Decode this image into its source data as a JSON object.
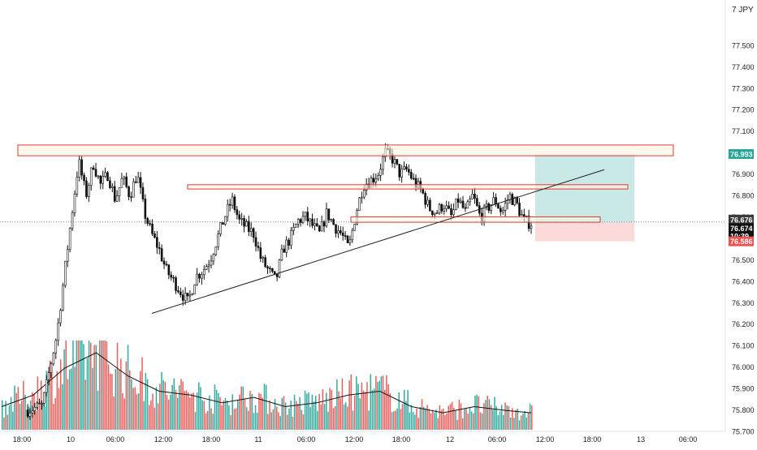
{
  "symbol_label": "7 JPY",
  "colors": {
    "up": "#26a69a",
    "down": "#ef5350",
    "candle": "#111111",
    "profit_zone": "#b2dfdb",
    "stop_zone": "#fcd6d6",
    "target_badge": "#26a69a",
    "stop_badge": "#ef5350",
    "price_badge": "#111111",
    "zone_border": "#e53935",
    "zone_fill": "#fff3e0",
    "trendline": "#222222",
    "volume_ma": "#111111",
    "axis_text": "#222222"
  },
  "chart_data": {
    "type": "candlestick",
    "title": "",
    "xlabel": "",
    "ylabel": "",
    "ylim": [
      75.65,
      77.62
    ],
    "y_ticks": [
      75.7,
      75.8,
      75.9,
      76.0,
      76.1,
      76.2,
      76.3,
      76.4,
      76.5,
      76.6,
      76.7,
      76.8,
      76.9,
      77.0,
      77.1,
      77.2,
      77.3,
      77.4,
      77.5
    ],
    "y_tick_labels": [
      "75.700",
      "75.800",
      "75.900",
      "76.000",
      "76.100",
      "76.200",
      "76.300",
      "76.400",
      "76.500",
      "76.600",
      "76.700",
      "76.800",
      "76.900",
      "77.000",
      "77.100",
      "77.200",
      "77.300",
      "77.400",
      "77.500"
    ],
    "x_ticks": [
      "18:00",
      "10",
      "06:00",
      "12:00",
      "18:00",
      "11",
      "06:00",
      "12:00",
      "18:00",
      "12",
      "06:00",
      "12:00",
      "18:00",
      "13",
      "06:00"
    ],
    "price_path": [
      [
        0,
        75.8
      ],
      [
        2,
        75.82
      ],
      [
        4,
        76.15
      ],
      [
        6,
        76.7
      ],
      [
        7,
        76.96
      ],
      [
        8,
        76.8
      ],
      [
        9,
        76.95
      ],
      [
        10,
        76.85
      ],
      [
        11,
        76.9
      ],
      [
        12,
        76.78
      ],
      [
        13,
        76.88
      ],
      [
        14,
        76.8
      ],
      [
        15,
        76.9
      ],
      [
        16,
        76.72
      ],
      [
        17,
        76.62
      ],
      [
        18,
        76.55
      ],
      [
        19,
        76.45
      ],
      [
        20,
        76.4
      ],
      [
        21,
        76.35
      ],
      [
        22,
        76.3
      ],
      [
        23,
        76.42
      ],
      [
        24,
        76.45
      ],
      [
        25,
        76.5
      ],
      [
        26,
        76.6
      ],
      [
        27,
        76.7
      ],
      [
        28,
        76.78
      ],
      [
        29,
        76.68
      ],
      [
        30,
        76.65
      ],
      [
        31,
        76.62
      ],
      [
        32,
        76.5
      ],
      [
        33,
        76.45
      ],
      [
        34,
        76.4
      ],
      [
        35,
        76.55
      ],
      [
        36,
        76.6
      ],
      [
        37,
        76.68
      ],
      [
        38,
        76.7
      ],
      [
        39,
        76.66
      ],
      [
        40,
        76.62
      ],
      [
        41,
        76.72
      ],
      [
        42,
        76.66
      ],
      [
        43,
        76.62
      ],
      [
        44,
        76.55
      ],
      [
        45,
        76.72
      ],
      [
        46,
        76.85
      ],
      [
        47,
        76.87
      ],
      [
        48,
        76.9
      ],
      [
        49,
        77.0
      ],
      [
        50,
        76.97
      ],
      [
        51,
        76.9
      ],
      [
        52,
        76.92
      ],
      [
        53,
        76.86
      ],
      [
        54,
        76.82
      ],
      [
        55,
        76.74
      ],
      [
        56,
        76.72
      ],
      [
        57,
        76.76
      ],
      [
        58,
        76.7
      ],
      [
        59,
        76.78
      ],
      [
        60,
        76.72
      ],
      [
        61,
        76.8
      ],
      [
        62,
        76.7
      ],
      [
        63,
        76.74
      ],
      [
        64,
        76.78
      ],
      [
        65,
        76.72
      ],
      [
        66,
        76.8
      ],
      [
        67,
        76.76
      ],
      [
        68,
        76.68
      ],
      [
        69,
        76.67
      ]
    ],
    "y_badges": [
      {
        "role": "target",
        "price": 76.993,
        "label": "76.993"
      },
      {
        "role": "last",
        "price": 76.676,
        "label": "76.676"
      },
      {
        "role": "price",
        "price": 76.674,
        "label": "76.674"
      },
      {
        "role": "countdown",
        "price": 76.622,
        "label": "10:39"
      },
      {
        "role": "stop",
        "price": 76.586,
        "label": "76.586"
      }
    ],
    "horizontal_zones": [
      {
        "from_t": 0,
        "to_t": 104,
        "price_low": 76.985,
        "price_high": 77.035
      },
      {
        "from_t": 27,
        "to_t": 94,
        "price_low": 76.83,
        "price_high": 76.85
      },
      {
        "from_t": 51,
        "to_t": 90,
        "price_low": 76.675,
        "price_high": 76.7
      }
    ],
    "trendline": {
      "from": [
        23,
        76.25
      ],
      "to": [
        92,
        76.92
      ]
    },
    "position": {
      "from_t": 81,
      "to_t": 96,
      "entry": 76.676,
      "target": 76.993,
      "stop": 76.586
    },
    "volume_ma": [
      [
        0,
        0.3
      ],
      [
        5,
        0.45
      ],
      [
        10,
        0.8
      ],
      [
        15,
        1.0
      ],
      [
        20,
        0.7
      ],
      [
        25,
        0.5
      ],
      [
        30,
        0.45
      ],
      [
        35,
        0.35
      ],
      [
        40,
        0.42
      ],
      [
        45,
        0.3
      ],
      [
        50,
        0.35
      ],
      [
        55,
        0.45
      ],
      [
        60,
        0.5
      ],
      [
        65,
        0.3
      ],
      [
        70,
        0.22
      ],
      [
        75,
        0.3
      ],
      [
        80,
        0.25
      ],
      [
        84,
        0.22
      ]
    ]
  }
}
